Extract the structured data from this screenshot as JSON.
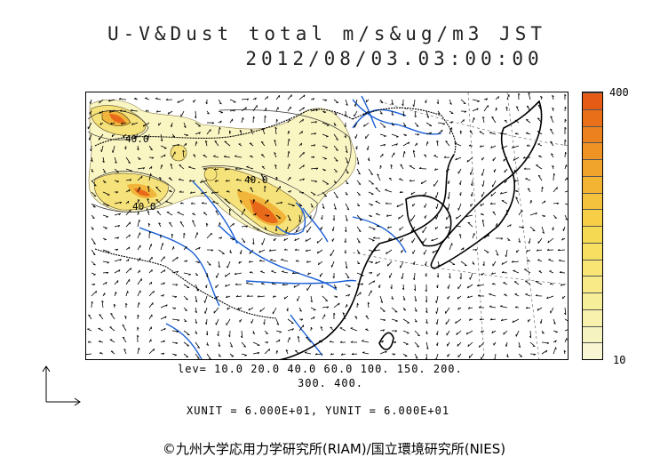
{
  "title": {
    "line1": "U-V&Dust total m/s&ug/m3 JST",
    "line2": "2012/08/03.03:00:00"
  },
  "colorbar": {
    "max_label": "400",
    "min_label": "10",
    "colors": [
      "#f7f5d2",
      "#f5f3c0",
      "#f7f1ad",
      "#f7ee99",
      "#f8ea86",
      "#f8e574",
      "#f7df62",
      "#f6d953",
      "#f6cf47",
      "#f4c23c",
      "#f3b433",
      "#f1a42b",
      "#ee9324",
      "#ec821e",
      "#e96f18",
      "#e65c14"
    ]
  },
  "map": {
    "contour_labels": [
      "40.0",
      "40.0",
      "40.0"
    ],
    "colors": {
      "coast": "#000000",
      "rivers": "#1a5fd6",
      "borders": "#000000",
      "vectors": "#000000",
      "dust_low": "#f7f1ad",
      "dust_mid": "#f4c23c",
      "dust_high": "#e9691a"
    }
  },
  "levels": {
    "line1": "lev= 10.0 20.0 40.0 60.0 100. 150. 200.",
    "line2": "300. 400."
  },
  "units": "XUNIT = 6.000E+01, YUNIT = 6.000E+01",
  "copyright": "©九州大学応用力学研究所(RIAM)/国立環境研究所(NIES)",
  "icons": {
    "axes": "xy-axes-icon"
  }
}
